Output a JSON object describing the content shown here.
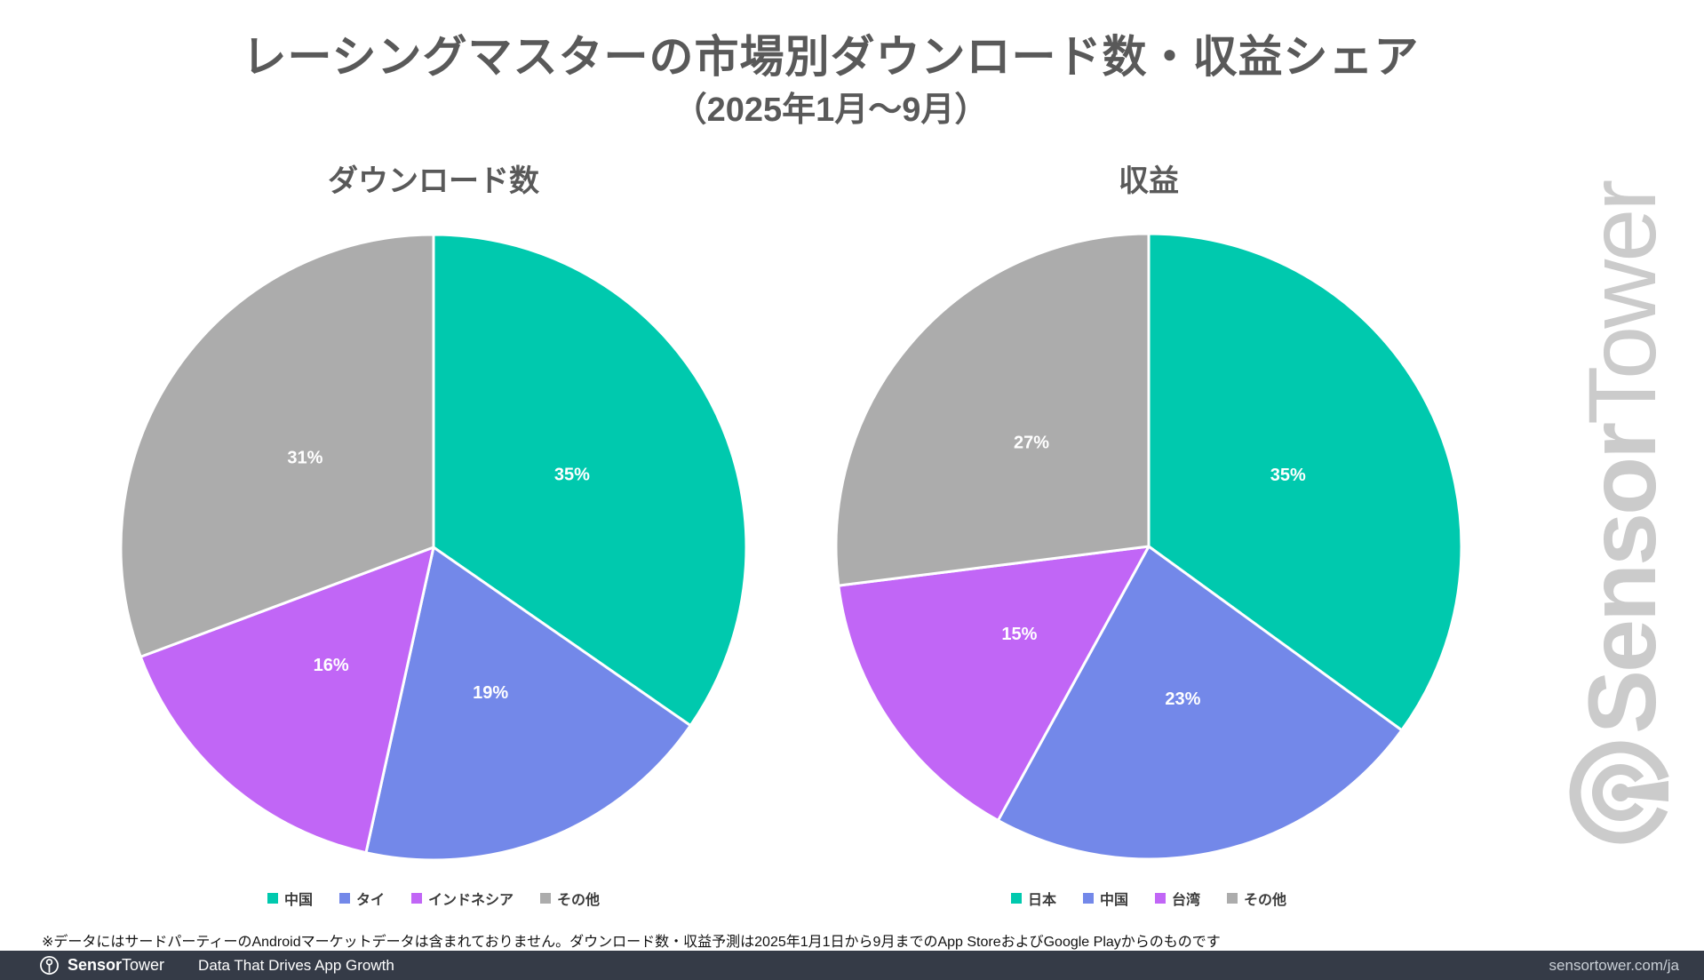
{
  "header": {
    "title": "レーシングマスターの市場別ダウンロード数・収益シェア",
    "subtitle": "（2025年1月〜9月）"
  },
  "chart_data": [
    {
      "type": "pie",
      "title": "ダウンロード数",
      "categories": [
        "中国",
        "タイ",
        "インドネシア",
        "その他"
      ],
      "values": [
        35,
        19,
        16,
        31
      ],
      "labels": [
        "35%",
        "19%",
        "16%",
        "31%"
      ],
      "unit": "%",
      "colors": [
        "#00c9ae",
        "#7388e9",
        "#c166f6",
        "#acacac"
      ],
      "legend_position": "bottom",
      "start_angle": 0,
      "direction": "clockwise"
    },
    {
      "type": "pie",
      "title": "収益",
      "categories": [
        "日本",
        "中国",
        "台湾",
        "その他"
      ],
      "values": [
        35,
        23,
        15,
        27
      ],
      "labels": [
        "35%",
        "23%",
        "15%",
        "27%"
      ],
      "unit": "%",
      "colors": [
        "#00c9ae",
        "#7388e9",
        "#c166f6",
        "#acacac"
      ],
      "legend_position": "bottom",
      "start_angle": 0,
      "direction": "clockwise"
    }
  ],
  "footnote": {
    "text": "※データにはサードパーティーのAndroidマーケットデータは含まれておりません。ダウンロード数・収益予測は2025年1月1日から9月までのApp StoreおよびGoogle Playからのものです"
  },
  "footer": {
    "brand_bold": "Sensor",
    "brand_regular": "Tower",
    "tagline": "Data That Drives App Growth",
    "url": "sensortower.com/ja",
    "bg_color": "#353b47"
  },
  "watermark": {
    "bold": "Sensor",
    "regular": "Tower",
    "color": "#cbcbcb"
  },
  "colors": {
    "teal": "#00c9ae",
    "blue": "#7388e9",
    "purple": "#c166f6",
    "gray": "#acacac",
    "title_text": "#595959",
    "slice_label_text": "#ffffff",
    "footer_bg": "#353b47"
  }
}
